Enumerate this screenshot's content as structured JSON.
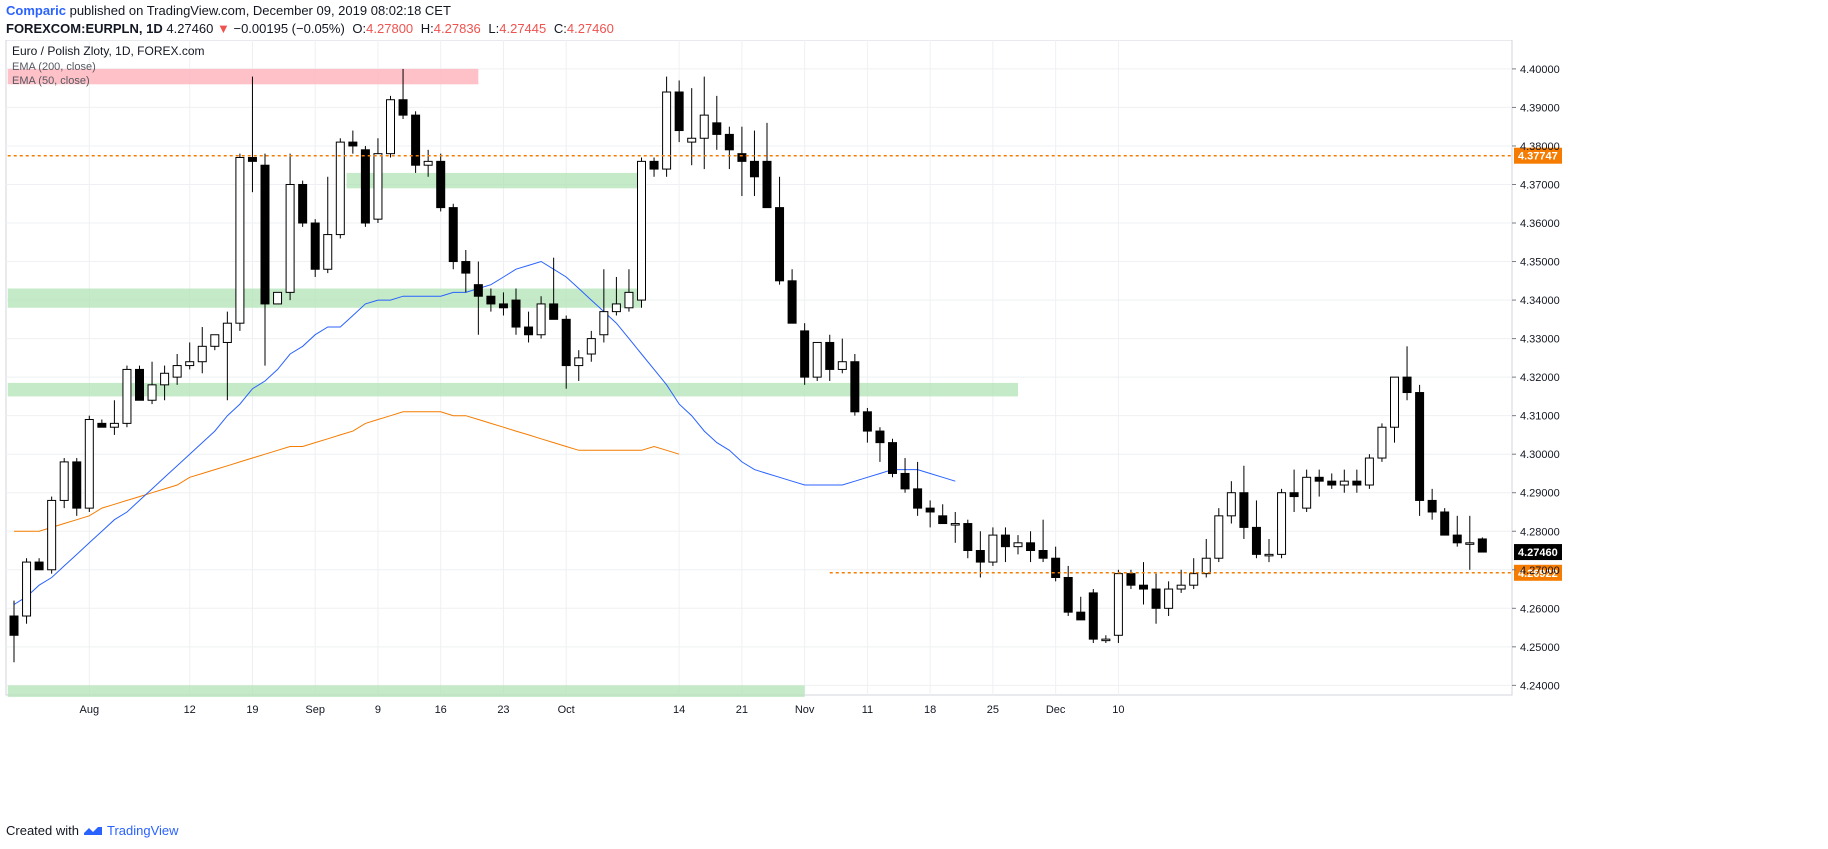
{
  "header": {
    "author": "Comparic",
    "published": "published on TradingView.com, December 09, 2019 08:02:18 CET",
    "symbol": "FOREXCOM:EURPLN, 1D",
    "last": "4.27460",
    "change": "−0.00195 (−0.05%)",
    "o_label": "O:",
    "o": "4.27800",
    "h_label": "H:",
    "h": "4.27836",
    "l_label": "L:",
    "l": "4.27445",
    "c_label": "C:",
    "c": "4.27460"
  },
  "footer": {
    "created": "Created with",
    "brand": "TradingView"
  },
  "chart_data": {
    "type": "candlestick",
    "title": "Euro / Polish Zloty, 1D, FOREX.com",
    "legend": [
      "EMA (200, close)",
      "EMA (50, close)"
    ],
    "ylim": [
      4.2375,
      4.4075
    ],
    "y_ticks": [
      "4.24000",
      "4.25000",
      "4.26000",
      "4.27000",
      "4.28000",
      "4.29000",
      "4.30000",
      "4.31000",
      "4.32000",
      "4.33000",
      "4.34000",
      "4.35000",
      "4.36000",
      "4.37000",
      "4.38000",
      "4.39000",
      "4.40000"
    ],
    "x_ticks": [
      {
        "i": 6,
        "label": "Aug"
      },
      {
        "i": 14,
        "label": "12"
      },
      {
        "i": 19,
        "label": "19"
      },
      {
        "i": 24,
        "label": "Sep"
      },
      {
        "i": 29,
        "label": "9"
      },
      {
        "i": 34,
        "label": "16"
      },
      {
        "i": 39,
        "label": "23"
      },
      {
        "i": 44,
        "label": "Oct"
      },
      {
        "i": 53,
        "label": "14"
      },
      {
        "i": 58,
        "label": "21"
      },
      {
        "i": 63,
        "label": "Nov"
      },
      {
        "i": 68,
        "label": "11"
      },
      {
        "i": 73,
        "label": "18"
      },
      {
        "i": 78,
        "label": "25"
      },
      {
        "i": 83,
        "label": "Dec"
      },
      {
        "i": 88,
        "label": "10"
      }
    ],
    "candles": [
      [
        4.258,
        4.262,
        4.246,
        4.253
      ],
      [
        4.258,
        4.273,
        4.256,
        4.272
      ],
      [
        4.272,
        4.273,
        4.27,
        4.27
      ],
      [
        4.27,
        4.289,
        4.269,
        4.288
      ],
      [
        4.288,
        4.299,
        4.286,
        4.298
      ],
      [
        4.298,
        4.299,
        4.284,
        4.286
      ],
      [
        4.286,
        4.31,
        4.285,
        4.309
      ],
      [
        4.308,
        4.309,
        4.307,
        4.307
      ],
      [
        4.307,
        4.314,
        4.305,
        4.308
      ],
      [
        4.308,
        4.323,
        4.307,
        4.322
      ],
      [
        4.322,
        4.323,
        4.314,
        4.314
      ],
      [
        4.314,
        4.324,
        4.313,
        4.318
      ],
      [
        4.318,
        4.323,
        4.314,
        4.321
      ],
      [
        4.32,
        4.326,
        4.318,
        4.323
      ],
      [
        4.323,
        4.329,
        4.322,
        4.324
      ],
      [
        4.324,
        4.333,
        4.321,
        4.328
      ],
      [
        4.328,
        4.331,
        4.327,
        4.331
      ],
      [
        4.329,
        4.337,
        4.314,
        4.334
      ],
      [
        4.334,
        4.378,
        4.332,
        4.377
      ],
      [
        4.377,
        4.398,
        4.368,
        4.376
      ],
      [
        4.375,
        4.378,
        4.323,
        4.339
      ],
      [
        4.339,
        4.342,
        4.339,
        4.342
      ],
      [
        4.342,
        4.378,
        4.34,
        4.37
      ],
      [
        4.37,
        4.371,
        4.359,
        4.36
      ],
      [
        4.36,
        4.361,
        4.346,
        4.348
      ],
      [
        4.348,
        4.372,
        4.347,
        4.357
      ],
      [
        4.357,
        4.382,
        4.356,
        4.381
      ],
      [
        4.381,
        4.384,
        4.378,
        4.38
      ],
      [
        4.379,
        4.38,
        4.359,
        4.36
      ],
      [
        4.361,
        4.382,
        4.36,
        4.378
      ],
      [
        4.378,
        4.393,
        4.377,
        4.392
      ],
      [
        4.392,
        4.4,
        4.387,
        4.388
      ],
      [
        4.388,
        4.389,
        4.373,
        4.375
      ],
      [
        4.375,
        4.379,
        4.372,
        4.376
      ],
      [
        4.376,
        4.378,
        4.363,
        4.364
      ],
      [
        4.364,
        4.365,
        4.348,
        4.35
      ],
      [
        4.35,
        4.353,
        4.342,
        4.347
      ],
      [
        4.344,
        4.35,
        4.331,
        4.341
      ],
      [
        4.341,
        4.343,
        4.337,
        4.339
      ],
      [
        4.339,
        4.342,
        4.336,
        4.338
      ],
      [
        4.34,
        4.343,
        4.331,
        4.333
      ],
      [
        4.333,
        4.337,
        4.329,
        4.331
      ],
      [
        4.331,
        4.341,
        4.33,
        4.339
      ],
      [
        4.339,
        4.351,
        4.335,
        4.335
      ],
      [
        4.335,
        4.336,
        4.317,
        4.323
      ],
      [
        4.323,
        4.327,
        4.319,
        4.325
      ],
      [
        4.326,
        4.332,
        4.324,
        4.33
      ],
      [
        4.331,
        4.348,
        4.329,
        4.337
      ],
      [
        4.337,
        4.346,
        4.336,
        4.339
      ],
      [
        4.338,
        4.348,
        4.337,
        4.342
      ],
      [
        4.34,
        4.377,
        4.338,
        4.376
      ],
      [
        4.376,
        4.377,
        4.372,
        4.374
      ],
      [
        4.374,
        4.398,
        4.372,
        4.394
      ],
      [
        4.394,
        4.397,
        4.381,
        4.384
      ],
      [
        4.381,
        4.395,
        4.375,
        4.382
      ],
      [
        4.382,
        4.398,
        4.374,
        4.388
      ],
      [
        4.386,
        4.393,
        4.379,
        4.383
      ],
      [
        4.383,
        4.385,
        4.374,
        4.379
      ],
      [
        4.378,
        4.385,
        4.367,
        4.376
      ]
    ],
    "candles_2": [
      [
        4.376,
        4.384,
        4.367,
        4.372
      ],
      [
        4.376,
        4.386,
        4.364,
        4.364
      ],
      [
        4.364,
        4.372,
        4.344,
        4.345
      ],
      [
        4.345,
        4.348,
        4.336,
        4.334
      ],
      [
        4.332,
        4.334,
        4.318,
        4.32
      ],
      [
        4.32,
        4.329,
        4.319,
        4.329
      ],
      [
        4.329,
        4.331,
        4.319,
        4.322
      ],
      [
        4.322,
        4.33,
        4.321,
        4.324
      ],
      [
        4.324,
        4.326,
        4.31,
        4.311
      ],
      [
        4.311,
        4.312,
        4.303,
        4.306
      ],
      [
        4.306,
        4.307,
        4.298,
        4.303
      ],
      [
        4.303,
        4.304,
        4.294,
        4.295
      ],
      [
        4.295,
        4.299,
        4.29,
        4.291
      ],
      [
        4.291,
        4.298,
        4.284,
        4.286
      ],
      [
        4.286,
        4.288,
        4.281,
        4.285
      ],
      [
        4.284,
        4.287,
        4.283,
        4.282
      ],
      [
        4.282,
        4.285,
        4.277,
        4.282
      ],
      [
        4.282,
        4.283,
        4.273,
        4.275
      ],
      [
        4.275,
        4.28,
        4.268,
        4.272
      ],
      [
        4.272,
        4.281,
        4.271,
        4.279
      ],
      [
        4.279,
        4.281,
        4.272,
        4.276
      ],
      [
        4.276,
        4.279,
        4.274,
        4.277
      ],
      [
        4.277,
        4.28,
        4.272,
        4.275
      ],
      [
        4.275,
        4.283,
        4.272,
        4.273
      ],
      [
        4.273,
        4.276,
        4.267,
        4.268
      ],
      [
        4.268,
        4.271,
        4.258,
        4.259
      ],
      [
        4.259,
        4.263,
        4.257,
        4.257
      ],
      [
        4.264,
        4.265,
        4.251,
        4.252
      ],
      [
        4.252,
        4.253,
        4.251,
        4.252
      ],
      [
        4.253,
        4.27,
        4.251,
        4.269
      ],
      [
        4.269,
        4.27,
        4.265,
        4.266
      ],
      [
        4.266,
        4.272,
        4.261,
        4.265
      ],
      [
        4.265,
        4.269,
        4.256,
        4.26
      ],
      [
        4.26,
        4.267,
        4.258,
        4.265
      ],
      [
        4.265,
        4.27,
        4.264,
        4.266
      ],
      [
        4.266,
        4.273,
        4.265,
        4.269
      ],
      [
        4.269,
        4.278,
        4.268,
        4.273
      ],
      [
        4.273,
        4.286,
        4.272,
        4.284
      ],
      [
        4.284,
        4.293,
        4.282,
        4.29
      ],
      [
        4.29,
        4.297,
        4.278,
        4.281
      ],
      [
        4.281,
        4.288,
        4.273,
        4.274
      ],
      [
        4.274,
        4.278,
        4.272,
        4.274
      ],
      [
        4.274,
        4.291,
        4.273,
        4.29
      ],
      [
        4.29,
        4.296,
        4.285,
        4.289
      ],
      [
        4.286,
        4.296,
        4.285,
        4.294
      ],
      [
        4.294,
        4.296,
        4.289,
        4.293
      ],
      [
        4.293,
        4.295,
        4.291,
        4.292
      ],
      [
        4.292,
        4.296,
        4.29,
        4.293
      ],
      [
        4.293,
        4.296,
        4.29,
        4.292
      ],
      [
        4.292,
        4.3,
        4.291,
        4.299
      ],
      [
        4.299,
        4.308,
        4.298,
        4.307
      ],
      [
        4.307,
        4.32,
        4.303,
        4.32
      ],
      [
        4.32,
        4.328,
        4.314,
        4.316
      ],
      [
        4.316,
        4.318,
        4.284,
        4.288
      ],
      [
        4.288,
        4.291,
        4.283,
        4.285
      ],
      [
        4.285,
        4.286,
        4.279,
        4.279
      ],
      [
        4.279,
        4.284,
        4.276,
        4.277
      ],
      [
        4.277,
        4.284,
        4.27,
        4.277
      ],
      [
        4.278,
        4.2784,
        4.2745,
        4.2746
      ]
    ],
    "ema50": [
      4.261,
      4.263,
      4.266,
      4.268,
      4.271,
      4.274,
      4.277,
      4.28,
      4.283,
      4.285,
      4.288,
      4.291,
      4.294,
      4.297,
      4.3,
      4.303,
      4.306,
      4.31,
      4.313,
      4.317,
      4.319,
      4.322,
      4.326,
      4.328,
      4.331,
      4.333,
      4.333,
      4.336,
      4.339,
      4.34,
      4.34,
      4.341,
      4.341,
      4.341,
      4.341,
      4.342,
      4.342,
      4.343,
      4.344,
      4.346,
      4.348,
      4.349,
      4.35,
      4.348,
      4.346,
      4.343,
      4.34,
      4.337,
      4.334,
      4.33,
      4.326,
      4.322,
      4.318,
      4.313,
      4.31,
      4.306,
      4.303,
      4.301,
      4.298,
      4.296,
      4.295,
      4.294,
      4.293,
      4.292,
      4.292,
      4.292,
      4.292,
      4.293,
      4.294,
      4.295,
      4.296,
      4.296,
      4.296,
      4.295,
      4.294,
      4.293
    ],
    "ema200": [
      4.28,
      4.28,
      4.28,
      4.281,
      4.282,
      4.283,
      4.284,
      4.286,
      4.287,
      4.288,
      4.289,
      4.29,
      4.291,
      4.292,
      4.294,
      4.295,
      4.296,
      4.297,
      4.298,
      4.299,
      4.3,
      4.301,
      4.302,
      4.302,
      4.303,
      4.304,
      4.305,
      4.306,
      4.308,
      4.309,
      4.31,
      4.311,
      4.311,
      4.311,
      4.311,
      4.31,
      4.31,
      4.309,
      4.308,
      4.307,
      4.306,
      4.305,
      4.304,
      4.303,
      4.302,
      4.301,
      4.301,
      4.301,
      4.301,
      4.301,
      4.301,
      4.302,
      4.301,
      4.3
    ],
    "support_zones": [
      {
        "from": 26.5,
        "to": 50,
        "lo": 4.369,
        "hi": 4.373
      },
      {
        "from": -0.5,
        "to": 50,
        "lo": 4.338,
        "hi": 4.343
      },
      {
        "from": -0.5,
        "to": 80,
        "lo": 4.315,
        "hi": 4.3185
      },
      {
        "from": -0.5,
        "to": 63,
        "lo": 4.237,
        "hi": 4.24
      }
    ],
    "resistance_zone": {
      "from": -0.5,
      "to": 37,
      "lo": 4.396,
      "hi": 4.4
    },
    "hlines": [
      {
        "value": 4.37747,
        "label": "4.37747",
        "from": -0.5
      },
      {
        "value": 4.26922,
        "label": "4.26922",
        "from": 65
      }
    ],
    "last_price_label": "4.27460",
    "colors": {
      "up": "#ffffff",
      "down": "#000000",
      "ema50": "#2962ff",
      "ema200": "#f57c00",
      "zone_green": "#b2e3b5",
      "zone_red": "#ffb6be",
      "dotted": "#f57c00"
    }
  }
}
